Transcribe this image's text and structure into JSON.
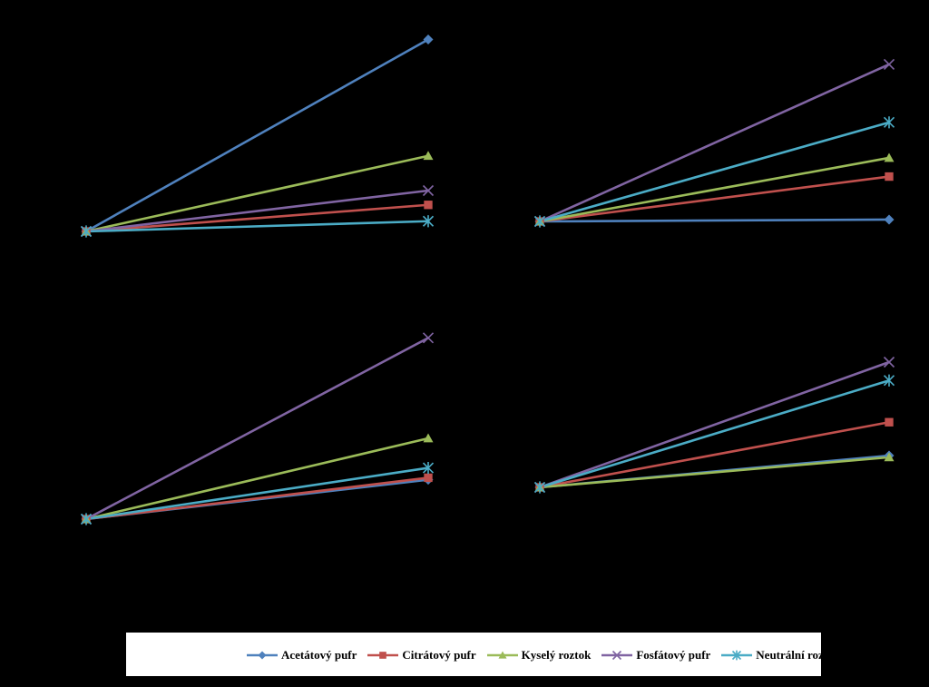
{
  "chart_data": [
    {
      "type": "line",
      "x": [
        0,
        1
      ],
      "ylim": [
        0,
        10
      ],
      "grid": false,
      "series": [
        {
          "name": "Acetátový pufr",
          "values": [
            0,
            9.4
          ]
        },
        {
          "name": "Citrátový pufr",
          "values": [
            0,
            1.3
          ]
        },
        {
          "name": "Kyselý roztok",
          "values": [
            0,
            3.7
          ]
        },
        {
          "name": "Fosfátový pufr",
          "values": [
            0,
            2.0
          ]
        },
        {
          "name": "Neutrální roztok",
          "values": [
            0,
            0.5
          ]
        }
      ]
    },
    {
      "type": "line",
      "x": [
        0,
        1
      ],
      "ylim": [
        0,
        10
      ],
      "grid": false,
      "series": [
        {
          "name": "Acetátový pufr",
          "values": [
            0,
            0.1
          ]
        },
        {
          "name": "Citrátový pufr",
          "values": [
            0,
            2.4
          ]
        },
        {
          "name": "Kyselý roztok",
          "values": [
            0,
            3.4
          ]
        },
        {
          "name": "Fosfátový pufr",
          "values": [
            0,
            8.4
          ]
        },
        {
          "name": "Neutrální roztok",
          "values": [
            0,
            5.3
          ]
        }
      ]
    },
    {
      "type": "line",
      "x": [
        0,
        1
      ],
      "ylim": [
        0,
        10
      ],
      "grid": false,
      "series": [
        {
          "name": "Acetátový pufr",
          "values": [
            0,
            2.0
          ]
        },
        {
          "name": "Citrátový pufr",
          "values": [
            0,
            2.1
          ]
        },
        {
          "name": "Kyselý roztok",
          "values": [
            0,
            4.1
          ]
        },
        {
          "name": "Fosfátový pufr",
          "values": [
            0,
            9.2
          ]
        },
        {
          "name": "Neutrální roztok",
          "values": [
            0,
            2.6
          ]
        }
      ]
    },
    {
      "type": "line",
      "x": [
        0,
        1
      ],
      "ylim": [
        0,
        10
      ],
      "grid": false,
      "series": [
        {
          "name": "Acetátový pufr",
          "values": [
            0,
            1.9
          ]
        },
        {
          "name": "Citrátový pufr",
          "values": [
            0,
            3.9
          ]
        },
        {
          "name": "Kyselý roztok",
          "values": [
            0,
            1.8
          ]
        },
        {
          "name": "Fosfátový pufr",
          "values": [
            0,
            7.5
          ]
        },
        {
          "name": "Neutrální roztok",
          "values": [
            0,
            6.4
          ]
        }
      ]
    }
  ],
  "legend": {
    "position": "bottom",
    "items": [
      {
        "label": "Acetátový pufr",
        "color": "#4f81bd",
        "marker": "diamond"
      },
      {
        "label": "Citrátový pufr",
        "color": "#c0504d",
        "marker": "square"
      },
      {
        "label": "Kyselý roztok",
        "color": "#9bbb59",
        "marker": "triangle"
      },
      {
        "label": "Fosfátový pufr",
        "color": "#8064a2",
        "marker": "x"
      },
      {
        "label": "Neutrální roztok",
        "color": "#4bacc6",
        "marker": "star"
      }
    ]
  }
}
